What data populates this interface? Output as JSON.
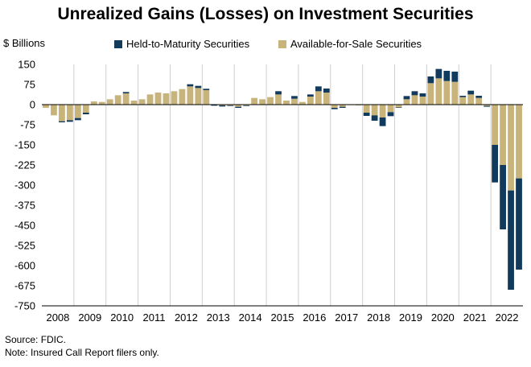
{
  "chart_data": {
    "type": "bar",
    "stacked": true,
    "title": "Unrealized Gains (Losses) on Investment Securities",
    "ylabel": "$ Billions",
    "xlabel": "",
    "ylim": [
      -750,
      150
    ],
    "yticks": [
      150,
      75,
      0,
      -75,
      -150,
      -225,
      -300,
      -375,
      -450,
      -525,
      -600,
      -675,
      -750
    ],
    "year_labels": [
      "2008",
      "2009",
      "2010",
      "2011",
      "2012",
      "2013",
      "2014",
      "2015",
      "2016",
      "2017",
      "2018",
      "2019",
      "2020",
      "2021",
      "2022"
    ],
    "grid": "vertical lines between years",
    "legend_position": "top",
    "categories": [
      "2008Q1",
      "2008Q2",
      "2008Q3",
      "2008Q4",
      "2009Q1",
      "2009Q2",
      "2009Q3",
      "2009Q4",
      "2010Q1",
      "2010Q2",
      "2010Q3",
      "2010Q4",
      "2011Q1",
      "2011Q2",
      "2011Q3",
      "2011Q4",
      "2012Q1",
      "2012Q2",
      "2012Q3",
      "2012Q4",
      "2013Q1",
      "2013Q2",
      "2013Q3",
      "2013Q4",
      "2014Q1",
      "2014Q2",
      "2014Q3",
      "2014Q4",
      "2015Q1",
      "2015Q2",
      "2015Q3",
      "2015Q4",
      "2016Q1",
      "2016Q2",
      "2016Q3",
      "2016Q4",
      "2017Q1",
      "2017Q2",
      "2017Q3",
      "2017Q4",
      "2018Q1",
      "2018Q2",
      "2018Q3",
      "2018Q4",
      "2019Q1",
      "2019Q2",
      "2019Q3",
      "2019Q4",
      "2020Q1",
      "2020Q2",
      "2020Q3",
      "2020Q4",
      "2021Q1",
      "2021Q2",
      "2021Q3",
      "2021Q4",
      "2022Q1",
      "2022Q2",
      "2022Q3",
      "2022Q4"
    ],
    "series": [
      {
        "name": "Available-for-Sale Securities",
        "color": "#c8b37a",
        "values": [
          -12,
          -40,
          -62,
          -58,
          -50,
          -30,
          12,
          10,
          20,
          35,
          42,
          15,
          20,
          38,
          45,
          42,
          50,
          58,
          68,
          62,
          54,
          0,
          -3,
          -3,
          -8,
          -3,
          25,
          20,
          28,
          38,
          15,
          22,
          10,
          30,
          50,
          45,
          -12,
          -8,
          -2,
          -3,
          -30,
          -40,
          -48,
          -28,
          -10,
          20,
          35,
          30,
          80,
          98,
          88,
          85,
          28,
          38,
          25,
          -5,
          -150,
          -225,
          -320,
          -275
        ],
        "_note": "AFS component (stacked nearest zero)"
      },
      {
        "name": "Held-to-Maturity Securities",
        "color": "#123a5c",
        "values": [
          0,
          0,
          -4,
          -6,
          -8,
          -6,
          0,
          0,
          0,
          0,
          5,
          0,
          0,
          0,
          0,
          0,
          0,
          0,
          8,
          8,
          5,
          -4,
          -4,
          -2,
          -4,
          -2,
          0,
          0,
          0,
          12,
          0,
          10,
          0,
          8,
          18,
          15,
          -5,
          -4,
          0,
          0,
          -12,
          -20,
          -32,
          -15,
          -2,
          12,
          15,
          12,
          25,
          35,
          38,
          38,
          5,
          14,
          8,
          -3,
          -140,
          -240,
          -370,
          -340
        ]
      }
    ]
  },
  "source": "Source: FDIC.",
  "note": "Note: Insured Call Report filers only."
}
